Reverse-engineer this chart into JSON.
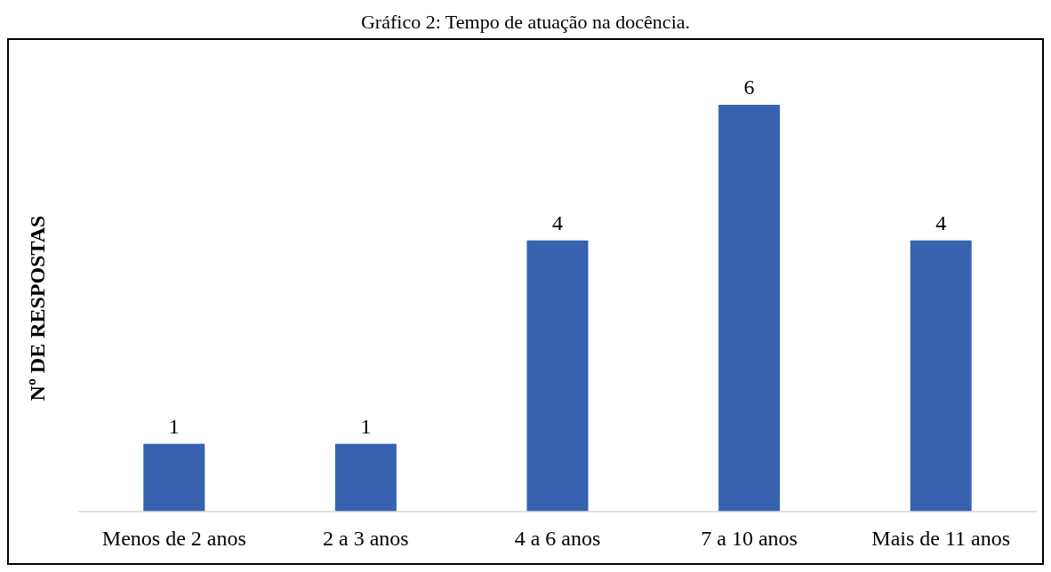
{
  "chart_data": {
    "type": "bar",
    "title": "Gráfico 2: Tempo de atuação na docência.",
    "ylabel": "Nº DE RESPOSTAS",
    "categories": [
      "Menos de 2 anos",
      "2 a 3 anos",
      "4 a 6 anos",
      "7 a 10 anos",
      "Mais de 11 anos"
    ],
    "values": [
      1,
      1,
      4,
      6,
      4
    ],
    "color": "#3762b0",
    "data_labels": true
  }
}
